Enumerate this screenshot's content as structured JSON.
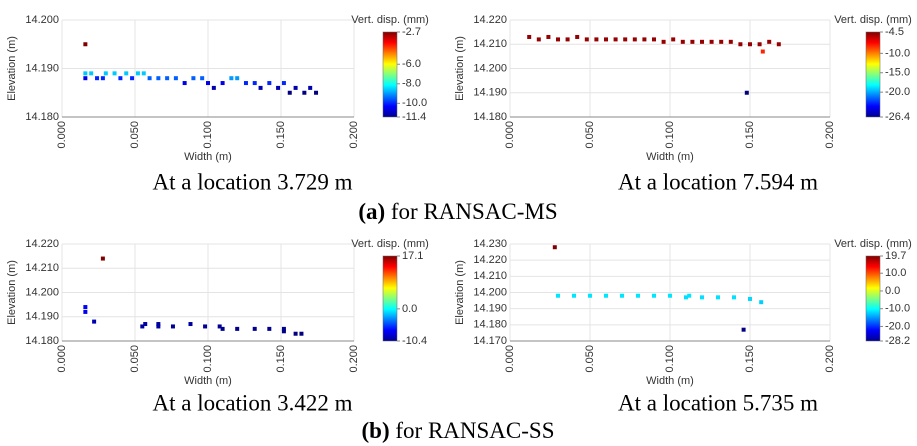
{
  "figure_captions": [
    {
      "label": "(a)",
      "text": "for RANSAC-MS"
    },
    {
      "label": "(b)",
      "text": "for RANSAC-SS"
    }
  ],
  "chart_data": [
    {
      "type": "scatter",
      "caption": "At a location 3.729 m",
      "xlabel": "Width (m)",
      "ylabel": "Elevation (m)",
      "colorbar_title": "Vert. disp. (mm)",
      "colormap": "jet",
      "grid": true,
      "xlim": [
        0,
        0.2
      ],
      "xticks": [
        {
          "value": 0,
          "label": "0.000"
        },
        {
          "value": 0.05,
          "label": "0.050"
        },
        {
          "value": 0.1,
          "label": "0.100"
        },
        {
          "value": 0.15,
          "label": "0.150"
        },
        {
          "value": 0.2,
          "label": "0.200"
        }
      ],
      "ylim": [
        14.18,
        14.2
      ],
      "yticks": [
        {
          "value": 14.18,
          "label": "14.180"
        },
        {
          "value": 14.19,
          "label": "14.190"
        },
        {
          "value": 14.2,
          "label": "14.200"
        }
      ],
      "clim": [
        -11.4,
        -2.7
      ],
      "cticks": [
        -2.7,
        {
          "value": -6,
          "label": "-6.0"
        },
        {
          "value": -8,
          "label": "-8.0"
        },
        {
          "value": -10,
          "label": "-10.0"
        },
        -11.4
      ],
      "x": [
        0.016,
        0.016,
        0.016,
        0.02,
        0.024,
        0.028,
        0.03,
        0.036,
        0.04,
        0.044,
        0.048,
        0.052,
        0.056,
        0.06,
        0.066,
        0.072,
        0.078,
        0.084,
        0.09,
        0.096,
        0.1,
        0.104,
        0.11,
        0.116,
        0.12,
        0.126,
        0.132,
        0.136,
        0.142,
        0.148,
        0.152,
        0.156,
        0.16,
        0.166,
        0.17,
        0.174
      ],
      "values": [
        14.195,
        14.189,
        14.188,
        14.189,
        14.188,
        14.188,
        14.189,
        14.189,
        14.188,
        14.189,
        14.188,
        14.189,
        14.189,
        14.188,
        14.188,
        14.188,
        14.188,
        14.187,
        14.188,
        14.188,
        14.187,
        14.186,
        14.187,
        14.188,
        14.188,
        14.187,
        14.187,
        14.186,
        14.187,
        14.186,
        14.187,
        14.185,
        14.186,
        14.185,
        14.186,
        14.185
      ],
      "color_values": [
        -2.7,
        -8.6,
        -10.5,
        -8.6,
        -10,
        -10,
        -8.6,
        -8.6,
        -10,
        -8.6,
        -10,
        -8.6,
        -8.6,
        -9.5,
        -9.5,
        -9.5,
        -9.5,
        -10.5,
        -9.5,
        -9.5,
        -10.5,
        -11,
        -10.5,
        -9,
        -9,
        -10,
        -10,
        -11,
        -10,
        -11,
        -10,
        -11.4,
        -11,
        -11.4,
        -11,
        -11.4
      ]
    },
    {
      "type": "scatter",
      "caption": "At a location 7.594 m",
      "xlabel": "Width (m)",
      "ylabel": "Elevation (m)",
      "colorbar_title": "Vert. disp. (mm)",
      "colormap": "jet",
      "grid": true,
      "xlim": [
        0,
        0.2
      ],
      "xticks": [
        {
          "value": 0,
          "label": "0.000"
        },
        {
          "value": 0.05,
          "label": "0.050"
        },
        {
          "value": 0.1,
          "label": "0.100"
        },
        {
          "value": 0.15,
          "label": "0.150"
        },
        {
          "value": 0.2,
          "label": "0.200"
        }
      ],
      "ylim": [
        14.18,
        14.22
      ],
      "yticks": [
        {
          "value": 14.18,
          "label": "14.180"
        },
        {
          "value": 14.19,
          "label": "14.190"
        },
        {
          "value": 14.2,
          "label": "14.200"
        },
        {
          "value": 14.21,
          "label": "14.210"
        },
        {
          "value": 14.22,
          "label": "14.220"
        }
      ],
      "clim": [
        -26.4,
        -4.5
      ],
      "cticks": [
        -4.5,
        {
          "value": -10,
          "label": "-10.0"
        },
        {
          "value": -15,
          "label": "-15.0"
        },
        {
          "value": -20,
          "label": "-20.0"
        },
        -26.4
      ],
      "x": [
        0.012,
        0.018,
        0.024,
        0.03,
        0.036,
        0.042,
        0.048,
        0.054,
        0.06,
        0.066,
        0.072,
        0.078,
        0.084,
        0.09,
        0.096,
        0.102,
        0.108,
        0.114,
        0.12,
        0.126,
        0.132,
        0.138,
        0.144,
        0.15,
        0.156,
        0.162,
        0.168,
        0.148,
        0.158
      ],
      "values": [
        14.213,
        14.212,
        14.213,
        14.212,
        14.212,
        14.213,
        14.212,
        14.212,
        14.212,
        14.212,
        14.212,
        14.212,
        14.212,
        14.212,
        14.211,
        14.212,
        14.211,
        14.211,
        14.211,
        14.211,
        14.211,
        14.211,
        14.21,
        14.21,
        14.21,
        14.211,
        14.21,
        14.19,
        14.207
      ],
      "color_values": [
        -5,
        -5,
        -5,
        -5,
        -5,
        -5,
        -5,
        -5,
        -5,
        -5,
        -5,
        -5,
        -5,
        -5,
        -5,
        -5,
        -5,
        -5,
        -5,
        -5,
        -5,
        -5,
        -5,
        -5,
        -5,
        -5,
        -5,
        -26.4,
        -8
      ]
    },
    {
      "type": "scatter",
      "caption": "At a location 3.422 m",
      "xlabel": "Width (m)",
      "ylabel": "Elevation (m)",
      "colorbar_title": "Vert. disp. (mm)",
      "colormap": "jet",
      "grid": true,
      "xlim": [
        0,
        0.2
      ],
      "xticks": [
        {
          "value": 0,
          "label": "0.000"
        },
        {
          "value": 0.05,
          "label": "0.050"
        },
        {
          "value": 0.1,
          "label": "0.100"
        },
        {
          "value": 0.15,
          "label": "0.150"
        },
        {
          "value": 0.2,
          "label": "0.200"
        }
      ],
      "ylim": [
        14.18,
        14.22
      ],
      "yticks": [
        {
          "value": 14.18,
          "label": "14.180"
        },
        {
          "value": 14.19,
          "label": "14.190"
        },
        {
          "value": 14.2,
          "label": "14.200"
        },
        {
          "value": 14.21,
          "label": "14.210"
        },
        {
          "value": 14.22,
          "label": "14.220"
        }
      ],
      "clim": [
        -10.4,
        17.1
      ],
      "cticks": [
        17.1,
        {
          "value": 0,
          "label": "0.0"
        },
        -10.4
      ],
      "x": [
        0.028,
        0.016,
        0.016,
        0.022,
        0.055,
        0.057,
        0.066,
        0.066,
        0.076,
        0.088,
        0.098,
        0.108,
        0.11,
        0.12,
        0.132,
        0.142,
        0.152,
        0.152,
        0.16,
        0.164
      ],
      "values": [
        14.214,
        14.194,
        14.192,
        14.188,
        14.186,
        14.187,
        14.187,
        14.186,
        14.186,
        14.187,
        14.186,
        14.186,
        14.185,
        14.185,
        14.185,
        14.185,
        14.185,
        14.184,
        14.183,
        14.183
      ],
      "color_values": [
        17.1,
        -7,
        -7.5,
        -9,
        -9.5,
        -9.5,
        -9.5,
        -9.5,
        -9.8,
        -9.5,
        -9.8,
        -9.8,
        -10,
        -10,
        -10,
        -10,
        -10,
        -10.2,
        -10.4,
        -10.4
      ]
    },
    {
      "type": "scatter",
      "caption": "At a location 5.735 m",
      "xlabel": "Width (m)",
      "ylabel": "Elevation (m)",
      "colorbar_title": "Vert. disp. (mm)",
      "colormap": "jet",
      "grid": true,
      "xlim": [
        0,
        0.2
      ],
      "xticks": [
        {
          "value": 0,
          "label": "0.000"
        },
        {
          "value": 0.05,
          "label": "0.050"
        },
        {
          "value": 0.1,
          "label": "0.100"
        },
        {
          "value": 0.15,
          "label": "0.150"
        },
        {
          "value": 0.2,
          "label": "0.200"
        }
      ],
      "ylim": [
        14.17,
        14.23
      ],
      "yticks": [
        {
          "value": 14.17,
          "label": "14.170"
        },
        {
          "value": 14.18,
          "label": "14.180"
        },
        {
          "value": 14.19,
          "label": "14.190"
        },
        {
          "value": 14.2,
          "label": "14.200"
        },
        {
          "value": 14.21,
          "label": "14.210"
        },
        {
          "value": 14.22,
          "label": "14.220"
        },
        {
          "value": 14.23,
          "label": "14.230"
        }
      ],
      "clim": [
        -28.2,
        19.7
      ],
      "cticks": [
        19.7,
        {
          "value": 10,
          "label": "10.0"
        },
        {
          "value": 0,
          "label": "0.0"
        },
        {
          "value": -10,
          "label": "-10.0"
        },
        {
          "value": -20,
          "label": "-20.0"
        },
        -28.2
      ],
      "x": [
        0.028,
        0.03,
        0.04,
        0.05,
        0.06,
        0.07,
        0.08,
        0.09,
        0.1,
        0.11,
        0.112,
        0.12,
        0.13,
        0.14,
        0.15,
        0.157,
        0.146
      ],
      "values": [
        14.228,
        14.198,
        14.198,
        14.198,
        14.198,
        14.198,
        14.198,
        14.198,
        14.198,
        14.197,
        14.198,
        14.197,
        14.197,
        14.197,
        14.196,
        14.194,
        14.177
      ],
      "color_values": [
        19.7,
        -11.4,
        -11.4,
        -11.4,
        -11.4,
        -11.4,
        -11.4,
        -11.4,
        -11.4,
        -11.6,
        -11.4,
        -11.6,
        -11.6,
        -11.6,
        -12,
        -12.5,
        -28.2
      ]
    }
  ]
}
